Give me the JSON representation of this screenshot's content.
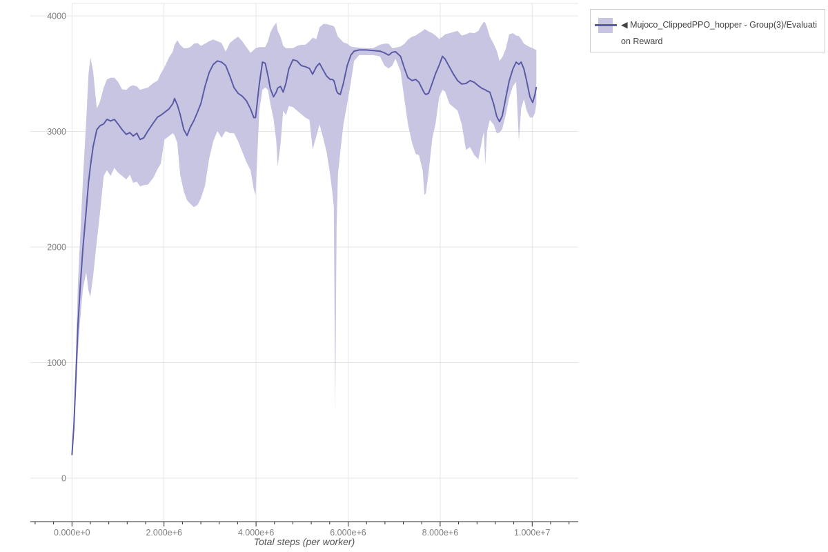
{
  "chart_data": {
    "type": "line",
    "title": "",
    "xlabel": "Total steps (per worker)",
    "ylabel": "",
    "grid": true,
    "legend_position": "outside-top-right",
    "xlim": [
      -904000,
      11005000
    ],
    "ylim": [
      -376,
      4107
    ],
    "x_ticks": {
      "values": [
        0,
        2000000,
        4000000,
        6000000,
        8000000,
        10000000
      ],
      "labels": [
        "0.000e+0",
        "2.000e+6",
        "4.000e+6",
        "6.000e+6",
        "8.000e+6",
        "1.000e+7"
      ]
    },
    "x_minor_ticks": {
      "start": -800000,
      "end": 10800000,
      "step": 400000
    },
    "y_ticks": {
      "values": [
        0,
        1000,
        2000,
        3000,
        4000
      ],
      "labels": [
        "0",
        "1000",
        "2000",
        "3000",
        "4000"
      ]
    },
    "colors": {
      "line": "#5b5aa5",
      "band": "#c8c5e3",
      "grid": "#e5e5e5",
      "axis": "#2b2b2b",
      "tick_label": "#808080",
      "axis_title": "#555555",
      "legend_border": "#cbcbcb",
      "legend_text": "#444444"
    },
    "series": [
      {
        "name": "◀ Mujoco_ClippedPPO_hopper - Group(3)/Evaluation Reward",
        "color": "#5b5aa5",
        "band_color": "#c8c5e3",
        "point_format": [
          "step",
          "mean",
          "min",
          "max"
        ],
        "points": [
          [
            0,
            200,
            200,
            200
          ],
          [
            40000,
            440,
            380,
            520
          ],
          [
            90000,
            910,
            790,
            1150
          ],
          [
            130000,
            1330,
            1100,
            1700
          ],
          [
            180000,
            1660,
            1380,
            2100
          ],
          [
            240000,
            2000,
            1640,
            2600
          ],
          [
            310000,
            2320,
            1780,
            3100
          ],
          [
            360000,
            2560,
            1620,
            3500
          ],
          [
            400000,
            2700,
            1570,
            3640
          ],
          [
            460000,
            2870,
            1750,
            3520
          ],
          [
            540000,
            3015,
            2050,
            3195
          ],
          [
            610000,
            3050,
            2300,
            3260
          ],
          [
            690000,
            3065,
            2615,
            3380
          ],
          [
            760000,
            3105,
            2665,
            3450
          ],
          [
            840000,
            3090,
            2615,
            3465
          ],
          [
            920000,
            3105,
            2685,
            3465
          ],
          [
            1000000,
            3065,
            2645,
            3430
          ],
          [
            1090000,
            3015,
            2615,
            3365
          ],
          [
            1180000,
            2975,
            2585,
            3360
          ],
          [
            1260000,
            2990,
            2625,
            3390
          ],
          [
            1330000,
            2960,
            2555,
            3400
          ],
          [
            1410000,
            2985,
            2565,
            3390
          ],
          [
            1480000,
            2930,
            2525,
            3360
          ],
          [
            1560000,
            2945,
            2535,
            3370
          ],
          [
            1650000,
            3005,
            2540,
            3380
          ],
          [
            1770000,
            3075,
            2600,
            3420
          ],
          [
            1860000,
            3125,
            2675,
            3440
          ],
          [
            1930000,
            3140,
            2720,
            3500
          ],
          [
            2010000,
            3165,
            2930,
            3555
          ],
          [
            2110000,
            3195,
            2960,
            3640
          ],
          [
            2190000,
            3240,
            2985,
            3690
          ],
          [
            2230000,
            3285,
            2965,
            3750
          ],
          [
            2290000,
            3230,
            2900,
            3790
          ],
          [
            2350000,
            3150,
            2630,
            3750
          ],
          [
            2430000,
            3015,
            2480,
            3720
          ],
          [
            2500000,
            2965,
            2405,
            3720
          ],
          [
            2570000,
            3035,
            2375,
            3730
          ],
          [
            2650000,
            3095,
            2345,
            3760
          ],
          [
            2730000,
            3170,
            2365,
            3765
          ],
          [
            2800000,
            3240,
            2420,
            3740
          ],
          [
            2890000,
            3390,
            2530,
            3760
          ],
          [
            2980000,
            3510,
            2765,
            3780
          ],
          [
            3070000,
            3580,
            2915,
            3795
          ],
          [
            3160000,
            3610,
            3005,
            3780
          ],
          [
            3250000,
            3600,
            2945,
            3765
          ],
          [
            3340000,
            3570,
            3005,
            3690
          ],
          [
            3430000,
            3480,
            2985,
            3765
          ],
          [
            3520000,
            3380,
            2985,
            3795
          ],
          [
            3610000,
            3330,
            2915,
            3820
          ],
          [
            3700000,
            3305,
            2825,
            3780
          ],
          [
            3790000,
            3265,
            2735,
            3730
          ],
          [
            3880000,
            3195,
            2665,
            3680
          ],
          [
            3950000,
            3120,
            2500,
            3705
          ],
          [
            3990000,
            3120,
            2450,
            3720
          ],
          [
            4070000,
            3410,
            3180,
            3730
          ],
          [
            4140000,
            3600,
            3360,
            3730
          ],
          [
            4200000,
            3590,
            3380,
            3730
          ],
          [
            4260000,
            3480,
            3360,
            3780
          ],
          [
            4310000,
            3370,
            3240,
            3855
          ],
          [
            4380000,
            3300,
            3110,
            3910
          ],
          [
            4440000,
            3340,
            2915,
            3940
          ],
          [
            4470000,
            3375,
            2700,
            3870
          ],
          [
            4530000,
            3390,
            2885,
            3820
          ],
          [
            4590000,
            3340,
            3180,
            3740
          ],
          [
            4650000,
            3420,
            3140,
            3720
          ],
          [
            4710000,
            3540,
            3220,
            3720
          ],
          [
            4800000,
            3620,
            3210,
            3720
          ],
          [
            4890000,
            3610,
            3180,
            3740
          ],
          [
            4980000,
            3570,
            3150,
            3750
          ],
          [
            5070000,
            3560,
            3120,
            3750
          ],
          [
            5160000,
            3545,
            3100,
            3780
          ],
          [
            5230000,
            3495,
            2845,
            3810
          ],
          [
            5310000,
            3560,
            2960,
            3800
          ],
          [
            5380000,
            3590,
            3060,
            3900
          ],
          [
            5460000,
            3530,
            2940,
            3930
          ],
          [
            5530000,
            3480,
            2825,
            3930
          ],
          [
            5610000,
            3450,
            2625,
            3920
          ],
          [
            5660000,
            3450,
            2465,
            3915
          ],
          [
            5690000,
            3440,
            2345,
            3910
          ],
          [
            5720000,
            3400,
            570,
            3890
          ],
          [
            5750000,
            3350,
            2170,
            3850
          ],
          [
            5780000,
            3330,
            2630,
            3820
          ],
          [
            5830000,
            3320,
            2825,
            3800
          ],
          [
            5900000,
            3420,
            3065,
            3770
          ],
          [
            5980000,
            3570,
            3240,
            3760
          ],
          [
            6060000,
            3660,
            3425,
            3735
          ],
          [
            6130000,
            3695,
            3610,
            3730
          ],
          [
            6240000,
            3705,
            3660,
            3725
          ],
          [
            6390000,
            3705,
            3660,
            3720
          ],
          [
            6540000,
            3700,
            3660,
            3720
          ],
          [
            6690000,
            3695,
            3650,
            3750
          ],
          [
            6790000,
            3680,
            3570,
            3760
          ],
          [
            6880000,
            3660,
            3545,
            3760
          ],
          [
            6960000,
            3685,
            3570,
            3720
          ],
          [
            7030000,
            3690,
            3630,
            3725
          ],
          [
            7140000,
            3650,
            3520,
            3735
          ],
          [
            7230000,
            3540,
            3260,
            3760
          ],
          [
            7300000,
            3465,
            3065,
            3795
          ],
          [
            7390000,
            3440,
            2900,
            3820
          ],
          [
            7470000,
            3450,
            2805,
            3830
          ],
          [
            7540000,
            3425,
            2795,
            3850
          ],
          [
            7620000,
            3360,
            2660,
            3870
          ],
          [
            7660000,
            3330,
            2450,
            3885
          ],
          [
            7690000,
            3320,
            2465,
            3880
          ],
          [
            7750000,
            3330,
            2645,
            3865
          ],
          [
            7830000,
            3420,
            2945,
            3850
          ],
          [
            7900000,
            3500,
            3065,
            3830
          ],
          [
            7980000,
            3575,
            3300,
            3800
          ],
          [
            8050000,
            3650,
            3360,
            3820
          ],
          [
            8110000,
            3625,
            3345,
            3840
          ],
          [
            8200000,
            3560,
            3240,
            3850
          ],
          [
            8290000,
            3495,
            3210,
            3860
          ],
          [
            8380000,
            3440,
            3180,
            3870
          ],
          [
            8470000,
            3410,
            3060,
            3830
          ],
          [
            8560000,
            3415,
            2840,
            3840
          ],
          [
            8650000,
            3440,
            2865,
            3855
          ],
          [
            8740000,
            3425,
            2795,
            3850
          ],
          [
            8830000,
            3395,
            2760,
            3870
          ],
          [
            8900000,
            3375,
            2900,
            3920
          ],
          [
            8950000,
            3365,
            3000,
            3950
          ],
          [
            8980000,
            3360,
            2705,
            3940
          ],
          [
            9020000,
            3350,
            3000,
            3900
          ],
          [
            9080000,
            3340,
            3100,
            3820
          ],
          [
            9160000,
            3240,
            3060,
            3760
          ],
          [
            9230000,
            3130,
            2985,
            3700
          ],
          [
            9290000,
            3085,
            2990,
            3610
          ],
          [
            9350000,
            3135,
            3020,
            3640
          ],
          [
            9430000,
            3300,
            3150,
            3720
          ],
          [
            9500000,
            3435,
            3290,
            3840
          ],
          [
            9580000,
            3540,
            3390,
            3850
          ],
          [
            9650000,
            3600,
            3430,
            3830
          ],
          [
            9710000,
            3580,
            2915,
            3825
          ],
          [
            9760000,
            3600,
            3200,
            3800
          ],
          [
            9820000,
            3540,
            3280,
            3760
          ],
          [
            9880000,
            3435,
            3180,
            3745
          ],
          [
            9950000,
            3300,
            3120,
            3730
          ],
          [
            10010000,
            3250,
            3120,
            3720
          ],
          [
            10060000,
            3320,
            3160,
            3710
          ],
          [
            10090000,
            3385,
            3240,
            3705
          ]
        ]
      }
    ]
  },
  "legend": {
    "label": "◀ Mujoco_ClippedPPO_hopper - Group(3)/Evaluation Reward"
  },
  "x_axis": {
    "title": "Total steps (per worker)"
  }
}
